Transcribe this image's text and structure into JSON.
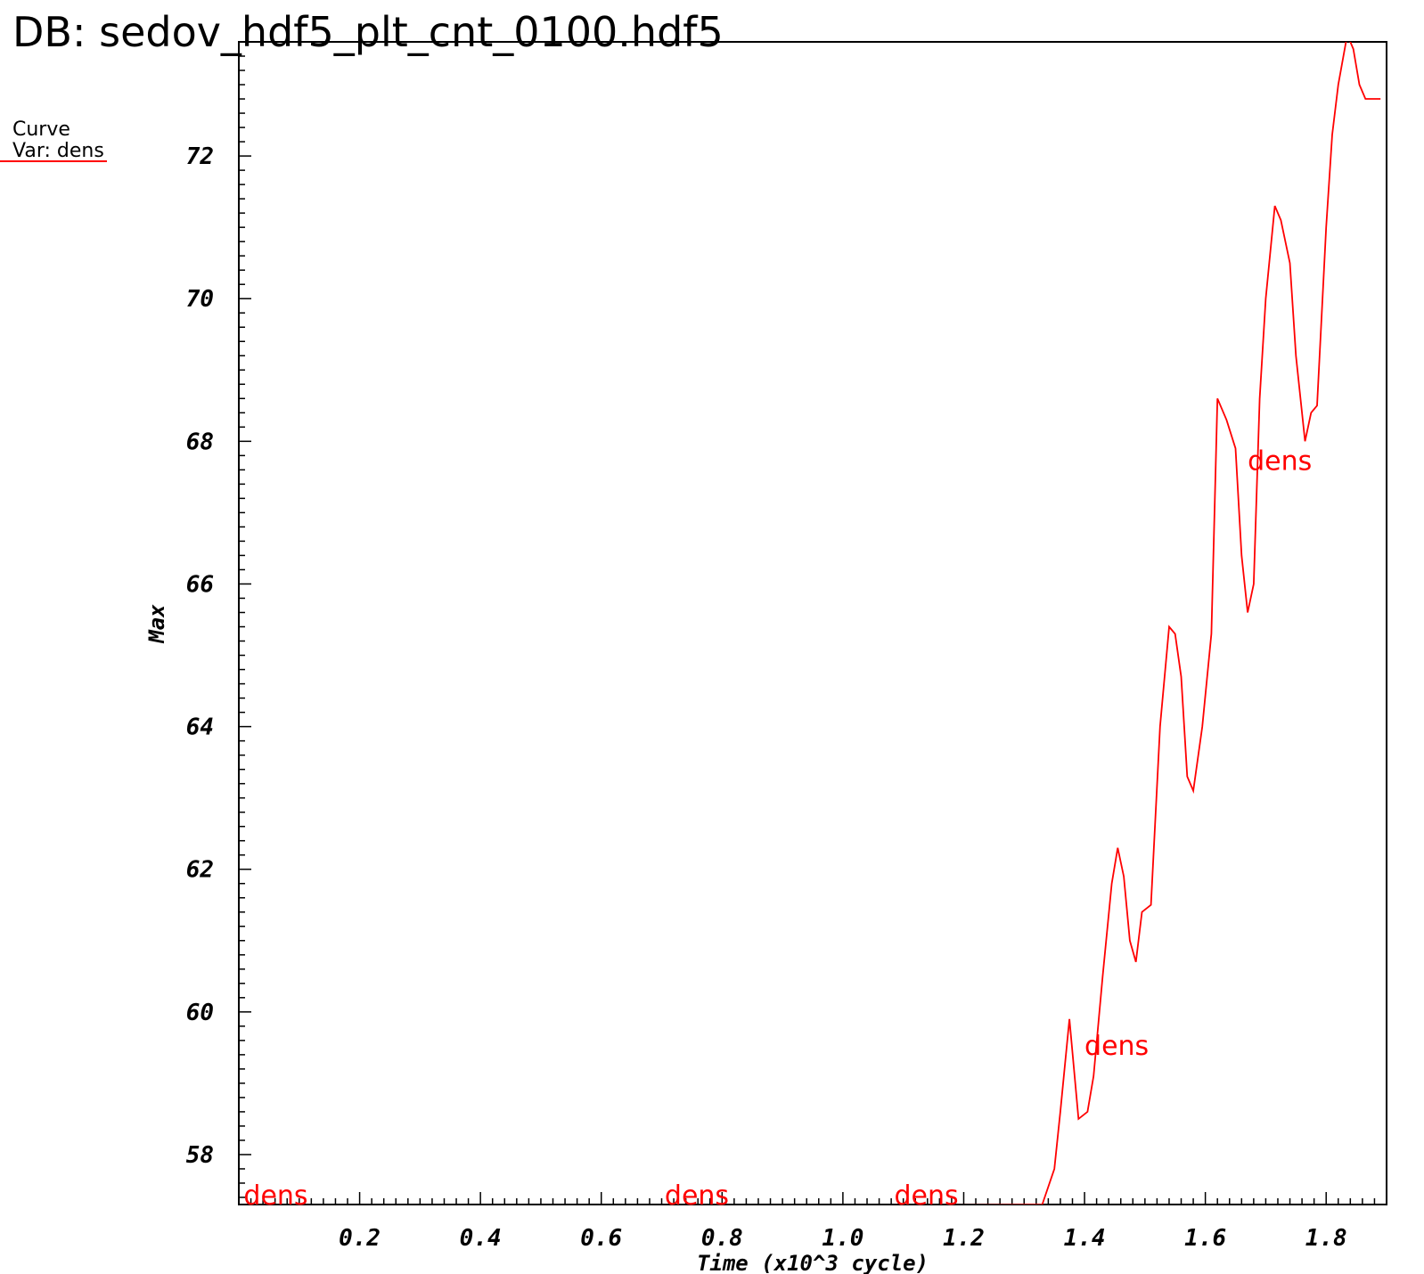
{
  "db_title": "DB: sedov_hdf5_plt_cnt_0100.hdf5",
  "legend": {
    "line1": "Curve",
    "line2": "Var: dens",
    "color": "#ff0000"
  },
  "chart_data": {
    "type": "line",
    "xlabel": "Time (x10^3 cycle)",
    "ylabel": "Max",
    "xlim": [
      0,
      1.9
    ],
    "ylim": [
      57.3,
      73.6
    ],
    "x_ticks": [
      "0.2",
      "0.4",
      "0.6",
      "0.8",
      "1.0",
      "1.2",
      "1.4",
      "1.6",
      "1.8"
    ],
    "x_tick_values": [
      0.2,
      0.4,
      0.6,
      0.8,
      1.0,
      1.2,
      1.4,
      1.6,
      1.8
    ],
    "y_ticks": [
      "58",
      "60",
      "62",
      "64",
      "66",
      "68",
      "70",
      "72"
    ],
    "y_tick_values": [
      58,
      60,
      62,
      64,
      66,
      68,
      70,
      72
    ],
    "grid": false,
    "series": [
      {
        "name": "dens",
        "color": "#ff0000",
        "x": [
          0.0,
          1.33,
          1.35,
          1.36,
          1.375,
          1.39,
          1.405,
          1.415,
          1.43,
          1.445,
          1.455,
          1.465,
          1.475,
          1.485,
          1.495,
          1.51,
          1.525,
          1.54,
          1.55,
          1.56,
          1.57,
          1.58,
          1.595,
          1.61,
          1.62,
          1.635,
          1.65,
          1.66,
          1.67,
          1.68,
          1.69,
          1.7,
          1.715,
          1.725,
          1.74,
          1.75,
          1.765,
          1.775,
          1.785,
          1.8,
          1.81,
          1.82,
          1.835,
          1.845,
          1.855,
          1.865,
          1.875,
          1.885,
          1.89
        ],
        "y": [
          57.2,
          57.3,
          57.8,
          58.6,
          59.9,
          58.5,
          58.6,
          59.1,
          60.5,
          61.8,
          62.3,
          61.9,
          61.0,
          60.7,
          61.4,
          61.5,
          64.0,
          65.4,
          65.3,
          64.7,
          63.3,
          63.1,
          64.0,
          65.3,
          68.6,
          68.3,
          67.9,
          66.4,
          65.6,
          66.0,
          68.6,
          70.0,
          71.3,
          71.1,
          70.5,
          69.2,
          68.0,
          68.4,
          68.5,
          71.0,
          72.3,
          73.0,
          73.7,
          73.5,
          73.0,
          72.8,
          72.8,
          72.8,
          72.8
        ]
      }
    ],
    "curve_labels": [
      {
        "text": "dens",
        "x": 0.008,
        "y": 57.3
      },
      {
        "text": "dens",
        "x": 0.705,
        "y": 57.3
      },
      {
        "text": "dens",
        "x": 1.085,
        "y": 57.3
      },
      {
        "text": "dens",
        "x": 1.4,
        "y": 59.4
      },
      {
        "text": "dens",
        "x": 1.67,
        "y": 67.6
      }
    ]
  }
}
